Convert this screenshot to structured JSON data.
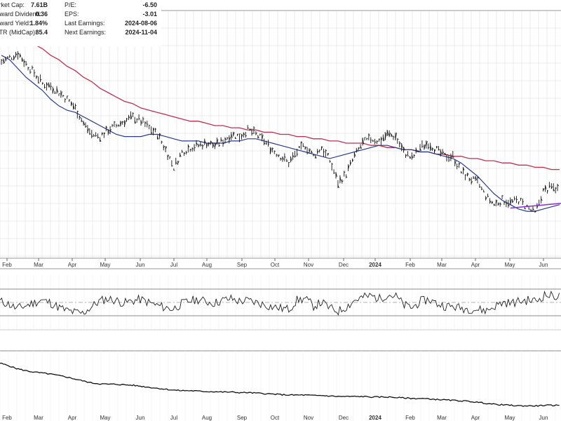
{
  "stats": {
    "left": [
      {
        "label": "Market Cap:",
        "value": "7.61B"
      },
      {
        "label": "Forward Dividend:",
        "value": "0.36"
      },
      {
        "label": "Forward Yield:",
        "value": "1.84%"
      },
      {
        "label": "SCTR (MidCap):",
        "value": "85.4"
      }
    ],
    "right": [
      {
        "label": "P/E:",
        "value": "-6.50"
      },
      {
        "label": "EPS:",
        "value": "-3.01"
      },
      {
        "label": "Last Earnings:",
        "value": "2024-08-06"
      },
      {
        "label": "Next Earnings:",
        "value": "2024-11-04"
      }
    ]
  },
  "chart_data": {
    "type": "line",
    "x_axis": {
      "ticks": [
        "Feb",
        "Mar",
        "Apr",
        "May",
        "Jun",
        "Jul",
        "Aug",
        "Sep",
        "Oct",
        "Nov",
        "Dec",
        "2024",
        "Feb",
        "Mar",
        "Apr",
        "May",
        "Jun"
      ],
      "grid": true
    },
    "price_panel": {
      "grid": true,
      "price_close_normalized": [
        0.83,
        0.85,
        0.87,
        0.82,
        0.78,
        0.73,
        0.72,
        0.69,
        0.66,
        0.62,
        0.55,
        0.5,
        0.49,
        0.52,
        0.54,
        0.56,
        0.58,
        0.56,
        0.53,
        0.5,
        0.43,
        0.35,
        0.42,
        0.44,
        0.45,
        0.46,
        0.45,
        0.47,
        0.5,
        0.49,
        0.52,
        0.5,
        0.47,
        0.43,
        0.4,
        0.37,
        0.42,
        0.45,
        0.4,
        0.44,
        0.38,
        0.28,
        0.32,
        0.4,
        0.46,
        0.48,
        0.47,
        0.5,
        0.49,
        0.42,
        0.39,
        0.44,
        0.46,
        0.43,
        0.4,
        0.4,
        0.33,
        0.3,
        0.28,
        0.22,
        0.18,
        0.2,
        0.19,
        0.2,
        0.17,
        0.14,
        0.24,
        0.26,
        0.25
      ],
      "ma_short_normalized": [
        0.86,
        0.84,
        0.8,
        0.76,
        0.73,
        0.7,
        0.66,
        0.63,
        0.61,
        0.6,
        0.58,
        0.56,
        0.54,
        0.52,
        0.5,
        0.49,
        0.49,
        0.49,
        0.5,
        0.5,
        0.49,
        0.48,
        0.47,
        0.47,
        0.47,
        0.46,
        0.46,
        0.46,
        0.47,
        0.47,
        0.48,
        0.48,
        0.47,
        0.46,
        0.45,
        0.44,
        0.43,
        0.42,
        0.41,
        0.4,
        0.39,
        0.4,
        0.41,
        0.42,
        0.43,
        0.44,
        0.45,
        0.45,
        0.44,
        0.43,
        0.43,
        0.42,
        0.42,
        0.41,
        0.4,
        0.39,
        0.37,
        0.34,
        0.31,
        0.27,
        0.23,
        0.2,
        0.18,
        0.16,
        0.15,
        0.15,
        0.16,
        0.17,
        0.18
      ],
      "ma_long_normalized": [
        0.98,
        0.97,
        0.95,
        0.93,
        0.91,
        0.89,
        0.86,
        0.84,
        0.81,
        0.79,
        0.76,
        0.74,
        0.71,
        0.69,
        0.67,
        0.65,
        0.64,
        0.62,
        0.61,
        0.6,
        0.59,
        0.58,
        0.57,
        0.56,
        0.56,
        0.55,
        0.54,
        0.54,
        0.53,
        0.53,
        0.52,
        0.52,
        0.51,
        0.51,
        0.5,
        0.5,
        0.49,
        0.49,
        0.48,
        0.48,
        0.47,
        0.47,
        0.46,
        0.46,
        0.46,
        0.45,
        0.45,
        0.44,
        0.44,
        0.43,
        0.43,
        0.42,
        0.42,
        0.41,
        0.41,
        0.4,
        0.4,
        0.39,
        0.39,
        0.38,
        0.38,
        0.37,
        0.37,
        0.36,
        0.36,
        0.35,
        0.35,
        0.34,
        0.34
      ],
      "trendline": {
        "from_index": 62,
        "to_index": 68,
        "color": "#8a2be2"
      },
      "colors": {
        "bars": "#111111",
        "ma_short": "#2b3a8f",
        "ma_long": "#c0304e"
      }
    },
    "oscillator_panel": {
      "guide_levels": [
        "upper",
        "mid",
        "lower"
      ],
      "values_normalized": [
        0.55,
        0.48,
        0.35,
        0.42,
        0.5,
        0.58,
        0.52,
        0.4,
        0.3,
        0.25,
        0.22,
        0.38,
        0.55,
        0.62,
        0.58,
        0.5,
        0.56,
        0.6,
        0.52,
        0.44,
        0.38,
        0.34,
        0.48,
        0.56,
        0.6,
        0.54,
        0.5,
        0.58,
        0.62,
        0.55,
        0.57,
        0.52,
        0.46,
        0.4,
        0.36,
        0.33,
        0.58,
        0.62,
        0.42,
        0.52,
        0.36,
        0.28,
        0.4,
        0.58,
        0.66,
        0.7,
        0.62,
        0.74,
        0.68,
        0.44,
        0.38,
        0.55,
        0.6,
        0.48,
        0.42,
        0.4,
        0.36,
        0.34,
        0.32,
        0.3,
        0.42,
        0.52,
        0.5,
        0.55,
        0.58,
        0.56,
        0.72,
        0.7,
        0.68
      ],
      "oversold_fill_color": "#c07070",
      "line_color": "#222222"
    },
    "bottom_panel": {
      "values_normalized": [
        0.95,
        0.9,
        0.84,
        0.8,
        0.77,
        0.75,
        0.73,
        0.7,
        0.67,
        0.63,
        0.59,
        0.55,
        0.53,
        0.52,
        0.52,
        0.51,
        0.5,
        0.48,
        0.46,
        0.44,
        0.42,
        0.4,
        0.39,
        0.39,
        0.38,
        0.37,
        0.37,
        0.36,
        0.36,
        0.35,
        0.35,
        0.34,
        0.33,
        0.32,
        0.31,
        0.3,
        0.3,
        0.3,
        0.29,
        0.29,
        0.28,
        0.27,
        0.27,
        0.27,
        0.27,
        0.26,
        0.26,
        0.26,
        0.25,
        0.24,
        0.23,
        0.23,
        0.22,
        0.21,
        0.2,
        0.19,
        0.18,
        0.17,
        0.15,
        0.13,
        0.11,
        0.1,
        0.09,
        0.08,
        0.08,
        0.08,
        0.09,
        0.09,
        0.09
      ],
      "line_color": "#111111"
    }
  }
}
